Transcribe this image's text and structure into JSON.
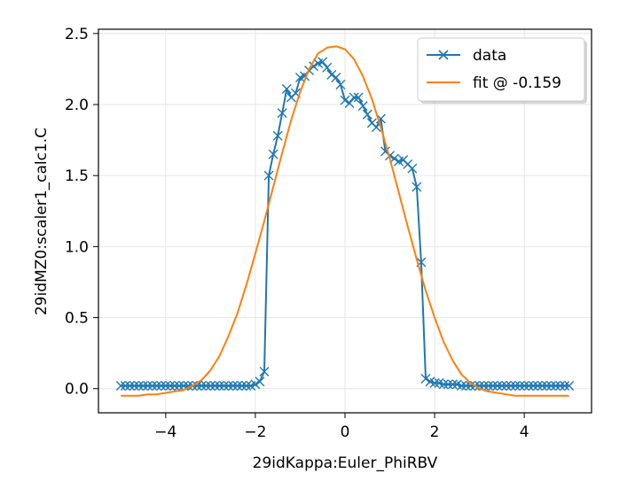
{
  "chart_data": {
    "type": "line",
    "xlabel": "29idKappa:Euler_PhiRBV",
    "ylabel": "29idMZ0:scaler1_calc1.C",
    "xlim": [
      -5.5,
      5.5
    ],
    "ylim": [
      -0.17,
      2.53
    ],
    "xticks": [
      -4,
      -2,
      0,
      2,
      4
    ],
    "yticks": [
      0.0,
      0.5,
      1.0,
      1.5,
      2.0,
      2.5
    ],
    "xtick_labels": [
      "−4",
      "−2",
      "0",
      "2",
      "4"
    ],
    "ytick_labels": [
      "0.0",
      "0.5",
      "1.0",
      "1.5",
      "2.0",
      "2.5"
    ],
    "grid": true,
    "legend_position": "top-right",
    "series": [
      {
        "name": "data",
        "style": "line-with-x-markers",
        "color": "#1f77b4",
        "x": [
          -5.0,
          -4.9,
          -4.8,
          -4.7,
          -4.6,
          -4.5,
          -4.4,
          -4.3,
          -4.2,
          -4.1,
          -4.0,
          -3.9,
          -3.8,
          -3.7,
          -3.6,
          -3.5,
          -3.4,
          -3.3,
          -3.2,
          -3.1,
          -3.0,
          -2.9,
          -2.8,
          -2.7,
          -2.6,
          -2.5,
          -2.4,
          -2.3,
          -2.2,
          -2.1,
          -2.0,
          -1.9,
          -1.8,
          -1.7,
          -1.6,
          -1.5,
          -1.4,
          -1.3,
          -1.2,
          -1.1,
          -1.0,
          -0.9,
          -0.8,
          -0.7,
          -0.6,
          -0.5,
          -0.4,
          -0.3,
          -0.2,
          -0.1,
          0.0,
          0.1,
          0.2,
          0.3,
          0.4,
          0.5,
          0.6,
          0.7,
          0.8,
          0.9,
          1.0,
          1.1,
          1.2,
          1.3,
          1.4,
          1.5,
          1.6,
          1.7,
          1.8,
          1.9,
          2.0,
          2.1,
          2.2,
          2.3,
          2.4,
          2.5,
          2.6,
          2.7,
          2.8,
          2.9,
          3.0,
          3.1,
          3.2,
          3.3,
          3.4,
          3.5,
          3.6,
          3.7,
          3.8,
          3.9,
          4.0,
          4.1,
          4.2,
          4.3,
          4.4,
          4.5,
          4.6,
          4.7,
          4.8,
          4.9,
          5.0
        ],
        "y": [
          0.02,
          0.02,
          0.02,
          0.02,
          0.02,
          0.02,
          0.02,
          0.02,
          0.02,
          0.02,
          0.02,
          0.02,
          0.02,
          0.02,
          0.02,
          0.02,
          0.02,
          0.02,
          0.02,
          0.02,
          0.02,
          0.02,
          0.02,
          0.02,
          0.02,
          0.02,
          0.02,
          0.02,
          0.02,
          0.02,
          0.03,
          0.05,
          0.12,
          1.5,
          1.65,
          1.78,
          1.94,
          2.11,
          2.05,
          2.08,
          2.19,
          2.2,
          2.24,
          2.27,
          2.29,
          2.3,
          2.26,
          2.21,
          2.19,
          2.14,
          2.03,
          2.01,
          2.05,
          2.05,
          1.99,
          1.93,
          1.87,
          1.84,
          1.9,
          1.67,
          1.64,
          1.62,
          1.6,
          1.61,
          1.58,
          1.55,
          1.42,
          0.89,
          0.07,
          0.05,
          0.04,
          0.04,
          0.03,
          0.03,
          0.03,
          0.03,
          0.02,
          0.02,
          0.02,
          0.02,
          0.02,
          0.02,
          0.02,
          0.02,
          0.02,
          0.02,
          0.02,
          0.02,
          0.02,
          0.02,
          0.02,
          0.02,
          0.02,
          0.02,
          0.02,
          0.02,
          0.02,
          0.02,
          0.02,
          0.02,
          0.02
        ]
      },
      {
        "name": "fit @ -0.159",
        "style": "line",
        "color": "#ff7f0e",
        "x": [
          -5.0,
          -4.8,
          -4.6,
          -4.4,
          -4.2,
          -4.0,
          -3.8,
          -3.6,
          -3.4,
          -3.2,
          -3.0,
          -2.8,
          -2.6,
          -2.4,
          -2.2,
          -2.0,
          -1.8,
          -1.6,
          -1.4,
          -1.2,
          -1.0,
          -0.8,
          -0.6,
          -0.4,
          -0.2,
          0.0,
          0.2,
          0.4,
          0.6,
          0.8,
          1.0,
          1.2,
          1.4,
          1.6,
          1.8,
          2.0,
          2.2,
          2.4,
          2.6,
          2.8,
          3.0,
          3.2,
          3.4,
          3.6,
          3.8,
          4.0,
          4.2,
          4.4,
          4.6,
          4.8,
          5.0
        ],
        "y": [
          -0.05,
          -0.05,
          -0.05,
          -0.04,
          -0.04,
          -0.03,
          -0.02,
          -0.01,
          0.02,
          0.06,
          0.13,
          0.23,
          0.37,
          0.53,
          0.73,
          0.95,
          1.18,
          1.42,
          1.66,
          1.89,
          2.09,
          2.25,
          2.36,
          2.4,
          2.41,
          2.39,
          2.32,
          2.2,
          2.04,
          1.84,
          1.62,
          1.38,
          1.14,
          0.91,
          0.69,
          0.5,
          0.33,
          0.2,
          0.1,
          0.04,
          0.0,
          -0.02,
          -0.03,
          -0.04,
          -0.05,
          -0.05,
          -0.05,
          -0.05,
          -0.05,
          -0.05,
          -0.05
        ]
      }
    ]
  }
}
